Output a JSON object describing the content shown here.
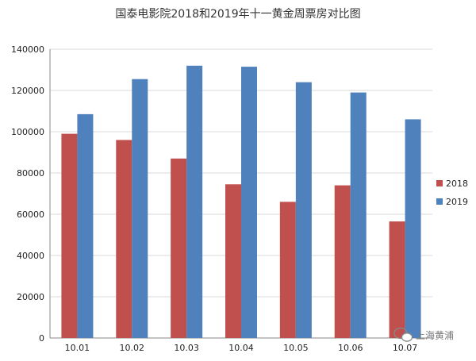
{
  "chart_data": {
    "type": "bar",
    "title": "国泰电影院2018和2019年十一黄金周票房对比图",
    "categories": [
      "10.01",
      "10.02",
      "10.03",
      "10.04",
      "10.05",
      "10.06",
      "10.07"
    ],
    "series": [
      {
        "name": "2018",
        "color": "#c0504d",
        "values": [
          99000,
          96000,
          87000,
          74500,
          66000,
          74000,
          56500
        ]
      },
      {
        "name": "2019",
        "color": "#4f81bd",
        "values": [
          108500,
          125500,
          132000,
          131500,
          124000,
          119000,
          106000
        ]
      }
    ],
    "ylim": [
      0,
      140000
    ],
    "yticks": [
      "0",
      "20000",
      "40000",
      "60000",
      "80000",
      "100000",
      "120000",
      "140000"
    ],
    "grid": true,
    "legend": "right"
  },
  "watermark": {
    "text": "上海黄浦",
    "icon": "wechat-icon"
  }
}
